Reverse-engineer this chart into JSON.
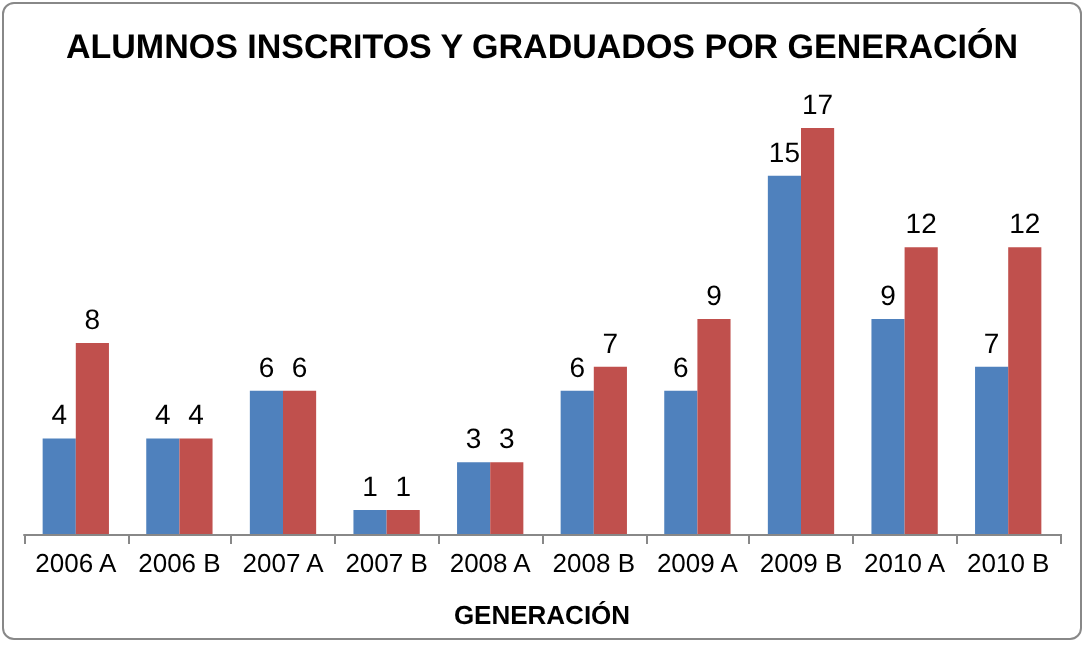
{
  "chart_data": {
    "type": "bar",
    "title": "ALUMNOS INSCRITOS Y GRADUADOS POR GENERACIÓN",
    "xlabel": "GENERACIÓN",
    "categories": [
      "2006 A",
      "2006 B",
      "2007 A",
      "2007 B",
      "2008 A",
      "2008 B",
      "2009 A",
      "2009 B",
      "2010 A",
      "2010 B"
    ],
    "series": [
      {
        "color": "#4f81bd",
        "values": [
          4,
          4,
          6,
          1,
          3,
          6,
          6,
          15,
          9,
          7
        ]
      },
      {
        "color": "#c0504d",
        "values": [
          8,
          4,
          6,
          1,
          3,
          7,
          9,
          17,
          12,
          12
        ]
      }
    ],
    "data_labels": true
  }
}
